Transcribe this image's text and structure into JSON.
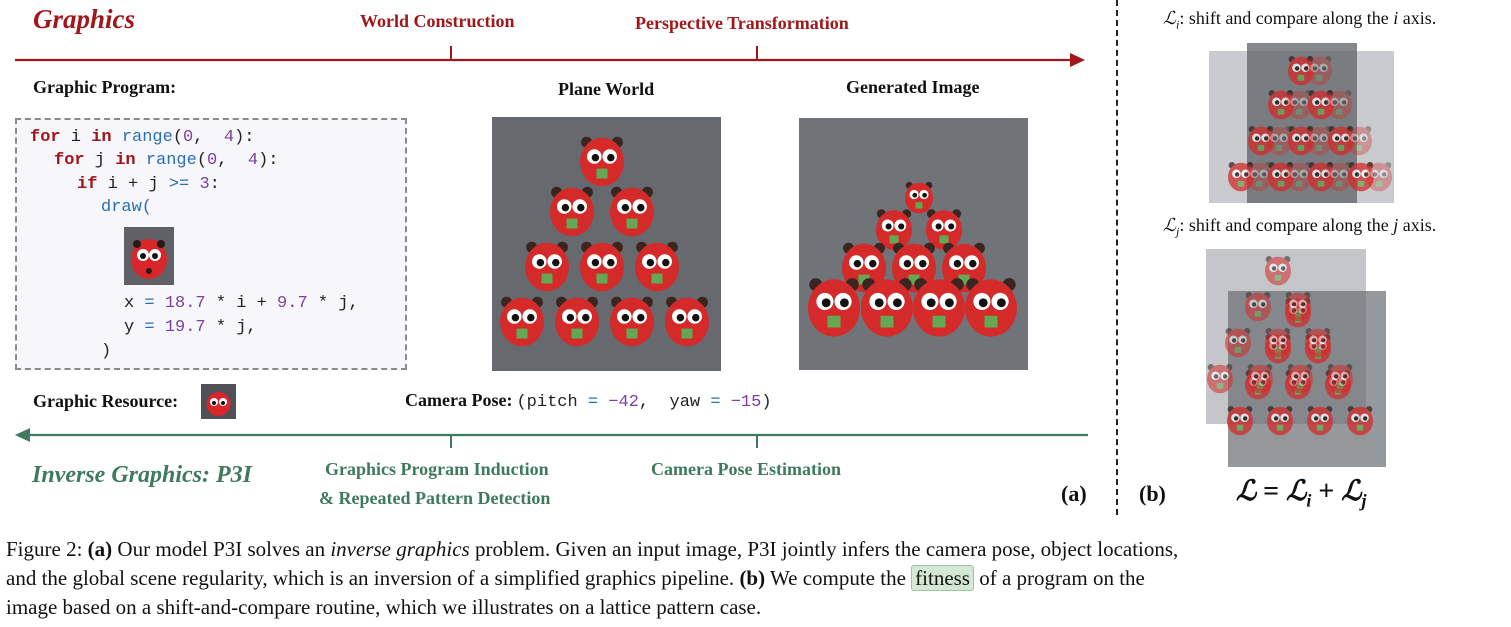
{
  "top": {
    "title": "Graphics",
    "step1": "World Construction",
    "step2": "Perspective Transformation"
  },
  "program": {
    "label": "Graphic Program:",
    "lines": {
      "l1a": "for",
      "l1b": " i ",
      "l1c": "in",
      "l1d": " ",
      "l1e": "range",
      "l1f": "(",
      "l1g": "0",
      "l1h": ",  ",
      "l1i": "4",
      "l1j": "):",
      "l2a": "for",
      "l2b": " j ",
      "l2c": "in",
      "l2d": " ",
      "l2e": "range",
      "l2f": "(",
      "l2g": "0",
      "l2h": ",  ",
      "l2i": "4",
      "l2j": "):",
      "l3a": "if",
      "l3b": " i + j ",
      "l3c": ">=",
      "l3d": " ",
      "l3e": "3",
      "l3f": ":",
      "l4": "draw(",
      "l5a": "x ",
      "l5b": "=",
      "l5c": " ",
      "l5d": "18.7",
      "l5e": " * i + ",
      "l5f": "9.7",
      "l5g": " * j,",
      "l6a": "y ",
      "l6b": "=",
      "l6c": " ",
      "l6d": "19.7",
      "l6e": " * j,",
      "l7": ")"
    }
  },
  "resource": {
    "label": "Graphic Resource:"
  },
  "plane": {
    "label": "Plane World"
  },
  "generated": {
    "label": "Generated Image"
  },
  "camera": {
    "label": "Camera Pose:",
    "a": "(pitch ",
    "b": "=",
    "c": " ",
    "d": "−42",
    "e": ",  yaw ",
    "f": "=",
    "g": " ",
    "h": "−15",
    "i": ")"
  },
  "bottom": {
    "title": "Inverse Graphics: P3I",
    "step1_line1": "Graphics Program Induction",
    "step1_line2": "& Repeated Pattern Detection",
    "step2": "Camera Pose Estimation",
    "panel_a": "(a)",
    "panel_b": "(b)"
  },
  "right": {
    "li_pre": "ℒ",
    "li_sub": "i",
    "li_text": ": shift and compare along the ",
    "li_var": "i",
    "li_end": " axis.",
    "lj_pre": "ℒ",
    "lj_sub": "j",
    "lj_text": ": shift and compare along the ",
    "lj_var": "j",
    "lj_end": " axis.",
    "formula": {
      "L": "ℒ",
      "eq": " = ",
      "Li": "ℒ",
      "i": "i",
      "plus": " + ",
      "Lj": "ℒ",
      "j": "j"
    }
  },
  "caption": {
    "p1": "Figure 2: ",
    "p2": "(a)",
    "p3": " Our model P3I solves an ",
    "p4": "inverse graphics",
    "p5": " problem. Given an input image, P3I jointly infers the camera pose, object locations,",
    "p6": "and the global scene regularity, which is an inversion of a simplified graphics pipeline. ",
    "p7": "(b)",
    "p8": " We compute the ",
    "p9": "fitness",
    "p10": " of a program on the",
    "p11": "image based on a shift-and-compare routine, which we illustrates on a lattice pattern case."
  },
  "colors": {
    "red": "#a0161a",
    "green": "#3f7a5c",
    "keyword": "#a0161a",
    "function": "#2a6fb0",
    "number": "#7b3fa0"
  }
}
